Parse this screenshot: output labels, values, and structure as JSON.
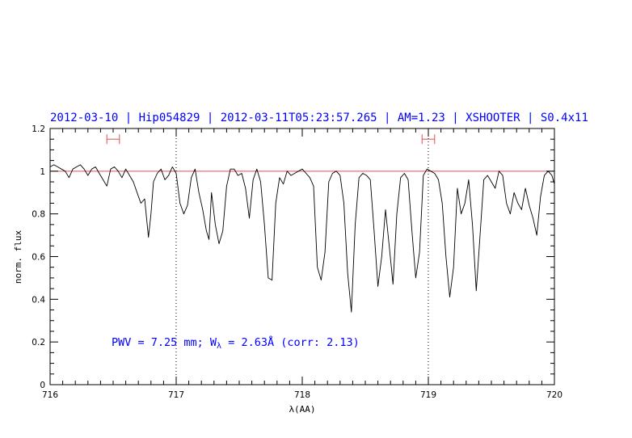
{
  "chart_data": {
    "type": "line",
    "title": "2012-03-10 | Hip054829 | 2012-03-11T05:23:57.265 | AM=1.23 | XSHOOTER | S0.4x11",
    "xlabel": "λ(AA)",
    "ylabel": "norm. flux",
    "xlim": [
      716,
      720
    ],
    "ylim": [
      0,
      1.2
    ],
    "x_ticks": [
      "716",
      "717",
      "718",
      "719",
      "720"
    ],
    "y_ticks": [
      "0",
      "0.2",
      "0.4",
      "0.6",
      "0.8",
      "1",
      "1.2"
    ],
    "annotation": {
      "prefix": "PWV = 7.25 mm; W",
      "subscript": "λ",
      "suffix": " = 2.63Å (corr: 2.13)"
    },
    "reference_line": {
      "y": 1.0,
      "color": "#e05050"
    },
    "vertical_markers": [
      717.0,
      719.0
    ],
    "error_bars": [
      {
        "x_from": 716.45,
        "x_to": 716.55,
        "y": 1.15
      },
      {
        "x_from": 718.95,
        "x_to": 719.05,
        "y": 1.15
      }
    ],
    "series": [
      {
        "color": "#000000",
        "x": [
          716.0,
          716.03,
          716.06,
          716.09,
          716.12,
          716.15,
          716.18,
          716.21,
          716.24,
          716.27,
          716.3,
          716.33,
          716.36,
          716.39,
          716.42,
          716.45,
          716.48,
          716.51,
          716.54,
          716.57,
          716.6,
          716.63,
          716.66,
          716.69,
          716.72,
          716.75,
          716.78,
          716.8,
          716.82,
          716.85,
          716.88,
          716.91,
          716.94,
          716.97,
          717.0,
          717.03,
          717.06,
          717.09,
          717.12,
          717.15,
          717.18,
          717.21,
          717.24,
          717.26,
          717.28,
          717.31,
          717.34,
          717.37,
          717.4,
          717.43,
          717.46,
          717.49,
          717.52,
          717.55,
          717.58,
          717.61,
          717.64,
          717.67,
          717.7,
          717.73,
          717.76,
          717.79,
          717.82,
          717.85,
          717.88,
          717.91,
          717.94,
          717.97,
          718.0,
          718.03,
          718.06,
          718.09,
          718.12,
          718.15,
          718.18,
          718.21,
          718.24,
          718.27,
          718.3,
          718.33,
          718.36,
          718.39,
          718.42,
          718.45,
          718.48,
          718.51,
          718.54,
          718.57,
          718.6,
          718.63,
          718.66,
          718.69,
          718.72,
          718.75,
          718.78,
          718.81,
          718.84,
          718.87,
          718.9,
          718.93,
          718.96,
          718.99,
          719.02,
          719.05,
          719.08,
          719.11,
          719.14,
          719.17,
          719.2,
          719.23,
          719.26,
          719.29,
          719.32,
          719.35,
          719.38,
          719.41,
          719.44,
          719.47,
          719.5,
          719.53,
          719.56,
          719.59,
          719.62,
          719.65,
          719.68,
          719.71,
          719.74,
          719.77,
          719.8,
          719.83,
          719.86,
          719.89,
          719.92,
          719.95,
          719.98,
          720.0
        ],
        "y": [
          1.02,
          1.03,
          1.02,
          1.01,
          1.0,
          0.97,
          1.01,
          1.02,
          1.03,
          1.01,
          0.98,
          1.01,
          1.02,
          0.99,
          0.96,
          0.93,
          1.01,
          1.02,
          1.0,
          0.97,
          1.01,
          0.98,
          0.95,
          0.9,
          0.85,
          0.87,
          0.69,
          0.8,
          0.95,
          0.99,
          1.01,
          0.96,
          0.98,
          1.02,
          0.99,
          0.85,
          0.8,
          0.84,
          0.97,
          1.01,
          0.9,
          0.82,
          0.72,
          0.68,
          0.9,
          0.75,
          0.66,
          0.72,
          0.93,
          1.01,
          1.01,
          0.98,
          0.99,
          0.92,
          0.78,
          0.96,
          1.01,
          0.95,
          0.75,
          0.5,
          0.49,
          0.85,
          0.97,
          0.94,
          1.0,
          0.98,
          0.99,
          1.0,
          1.01,
          0.99,
          0.97,
          0.93,
          0.55,
          0.49,
          0.62,
          0.95,
          0.99,
          1.0,
          0.98,
          0.85,
          0.52,
          0.34,
          0.75,
          0.97,
          0.99,
          0.98,
          0.96,
          0.72,
          0.46,
          0.6,
          0.82,
          0.65,
          0.47,
          0.8,
          0.97,
          0.99,
          0.96,
          0.72,
          0.5,
          0.62,
          0.98,
          1.01,
          1.0,
          0.99,
          0.96,
          0.85,
          0.6,
          0.41,
          0.55,
          0.92,
          0.8,
          0.85,
          0.96,
          0.75,
          0.44,
          0.7,
          0.96,
          0.98,
          0.95,
          0.92,
          1.0,
          0.98,
          0.85,
          0.8,
          0.9,
          0.85,
          0.82,
          0.92,
          0.84,
          0.78,
          0.7,
          0.88,
          0.98,
          1.0,
          0.98,
          0.94
        ]
      }
    ]
  }
}
